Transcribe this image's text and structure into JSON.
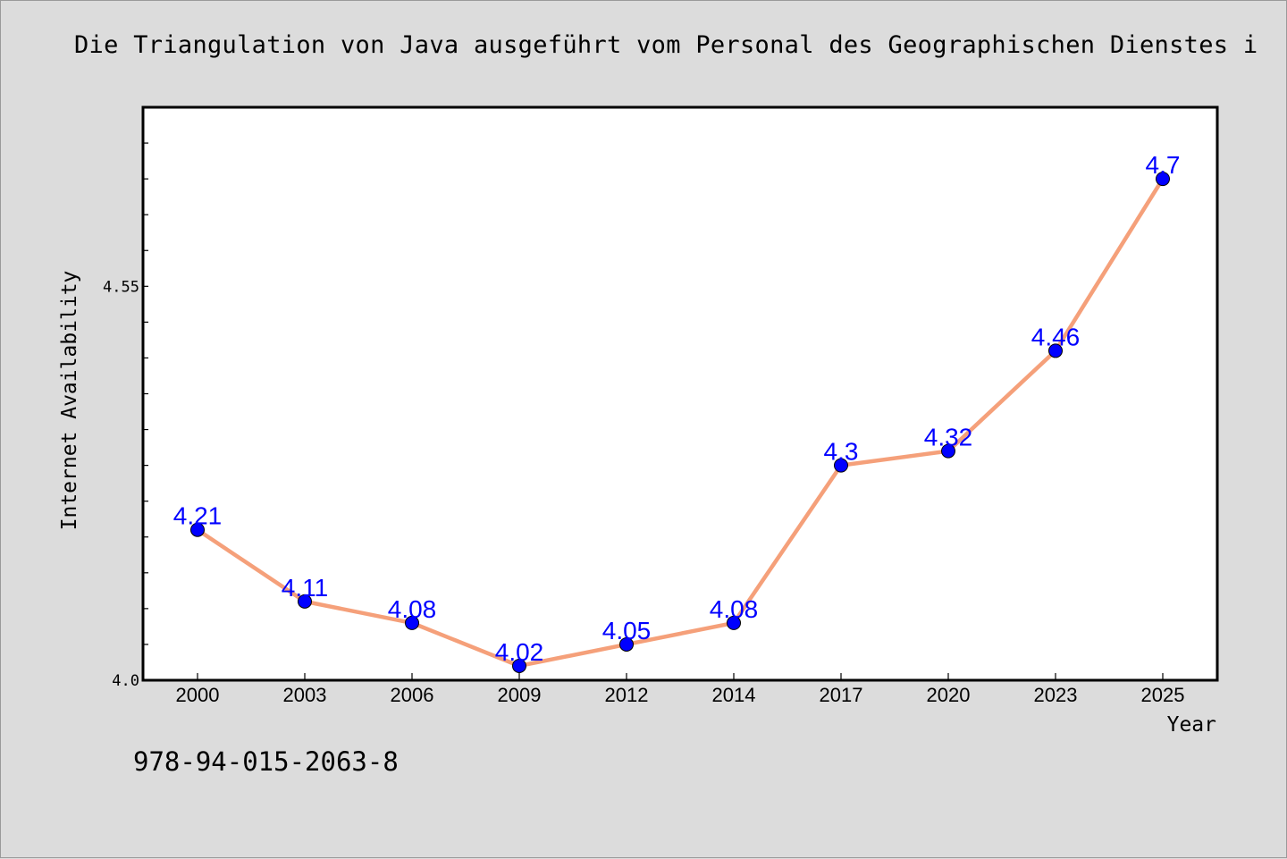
{
  "chart_data": {
    "type": "line",
    "title": "Die Triangulation von Java ausgeführt vom Personal des Geographischen Dienstes i",
    "xlabel": "Year",
    "ylabel": "Internet Availability",
    "categories": [
      "2000",
      "2003",
      "2006",
      "2009",
      "2012",
      "2014",
      "2017",
      "2020",
      "2023",
      "2025"
    ],
    "series": [
      {
        "values": [
          4.21,
          4.11,
          4.08,
          4.02,
          4.05,
          4.08,
          4.3,
          4.32,
          4.46,
          4.7
        ],
        "labels": [
          "4.21",
          "4.11",
          "4.08",
          "4.02",
          "4.05",
          "4.08",
          "4.3",
          "4.32",
          "4.46",
          "4.7"
        ],
        "line_color": "#f5a07a",
        "marker_color": "#0000ff"
      }
    ],
    "ylim": [
      4.0,
      4.8
    ],
    "yticks": [
      "4.0",
      "4.55"
    ],
    "grid": false,
    "legend": "none"
  },
  "note": "978-94-015-2063-8",
  "colors": {
    "background": "#dcdcdc",
    "plot_background": "#ffffff",
    "label_color": "#0000ff"
  }
}
